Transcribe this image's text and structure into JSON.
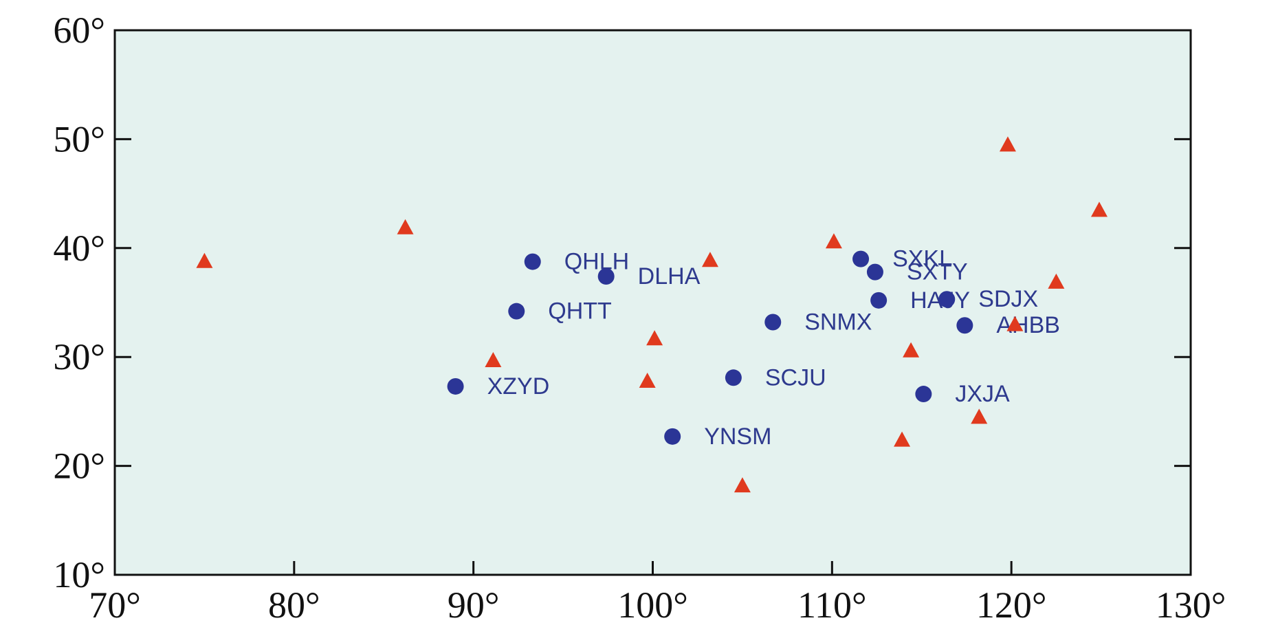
{
  "chart_data": {
    "type": "scatter",
    "xlim": [
      70,
      130
    ],
    "ylim": [
      10,
      60
    ],
    "xticks": [
      {
        "value": 70,
        "label": "70°"
      },
      {
        "value": 80,
        "label": "80°"
      },
      {
        "value": 90,
        "label": "90°"
      },
      {
        "value": 100,
        "label": "100°"
      },
      {
        "value": 110,
        "label": "110°"
      },
      {
        "value": 120,
        "label": "120°"
      },
      {
        "value": 130,
        "label": "130°"
      }
    ],
    "yticks": [
      {
        "value": 10,
        "label": "10°"
      },
      {
        "value": 20,
        "label": "20°"
      },
      {
        "value": 30,
        "label": "30°"
      },
      {
        "value": 40,
        "label": "40°"
      },
      {
        "value": 50,
        "label": "50°"
      },
      {
        "value": 60,
        "label": "60°"
      }
    ],
    "background": "#e4f2ef",
    "series": [
      {
        "color": "#2b3596",
        "marker": "circle",
        "x": [
          93.3,
          97.4,
          92.4,
          89.0,
          104.5,
          101.1,
          106.7,
          111.6,
          112.4,
          112.6,
          116.4,
          117.4,
          115.1
        ],
        "y": [
          38.75,
          37.4,
          34.2,
          27.3,
          28.1,
          22.7,
          33.2,
          39.0,
          37.8,
          35.2,
          35.3,
          32.9,
          26.6
        ],
        "labels": [
          "QHLH",
          "DLHA",
          "QHTT",
          "XZYD",
          "SCJU",
          "YNSM",
          "SNMX",
          "SXKL",
          "SXTY",
          "HAJY",
          "SDJX",
          "AHBB",
          "JXJA"
        ]
      },
      {
        "color": "#e03a1e",
        "marker": "triangle",
        "x": [
          75.0,
          86.2,
          91.1,
          100.1,
          99.7,
          103.2,
          105.0,
          110.1,
          114.4,
          113.9,
          118.2,
          119.8,
          120.2,
          122.5,
          124.9
        ],
        "y": [
          38.8,
          41.9,
          29.7,
          31.7,
          27.8,
          38.9,
          18.2,
          40.6,
          30.6,
          22.4,
          24.5,
          49.5,
          33.0,
          36.9,
          43.5
        ]
      }
    ]
  }
}
